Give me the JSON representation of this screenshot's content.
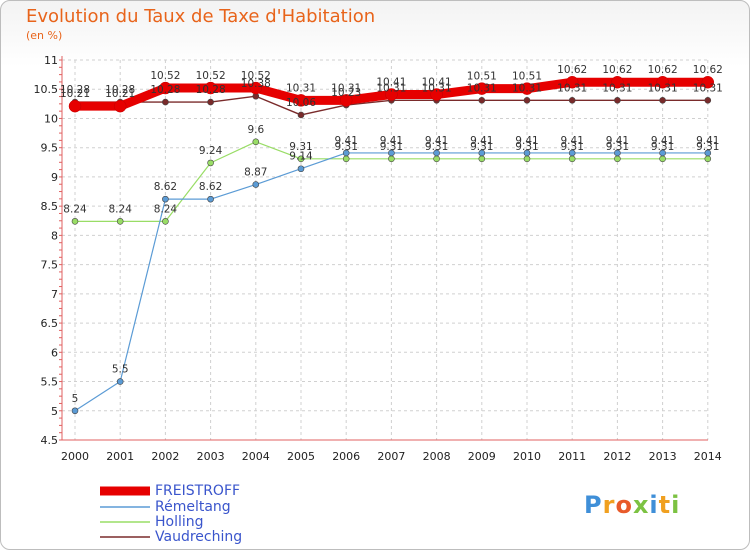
{
  "chart_data": {
    "type": "line",
    "title": "Evolution du Taux de Taxe d'Habitation",
    "subtitle": "(en %)",
    "x": [
      "2000",
      "2001",
      "2002",
      "2003",
      "2004",
      "2005",
      "2006",
      "2007",
      "2008",
      "2009",
      "2010",
      "2011",
      "2012",
      "2013",
      "2014"
    ],
    "yticks": [
      "4.5",
      "5",
      "5.5",
      "6",
      "6.5",
      "7",
      "7.5",
      "8",
      "8.5",
      "9",
      "9.5",
      "10",
      "10.5",
      "11"
    ],
    "ylim": [
      4.5,
      11
    ],
    "grid": true,
    "legend_position": "bottom-left",
    "series": [
      {
        "name": "FREISTROFF",
        "color": "#e60000",
        "values": [
          10.21,
          10.21,
          10.52,
          10.52,
          10.52,
          10.31,
          10.31,
          10.41,
          10.41,
          10.51,
          10.51,
          10.62,
          10.62,
          10.62,
          10.62
        ],
        "labels": [
          "10.21",
          "10.21",
          "10.52",
          "10.52",
          "10.52",
          "10.31",
          "10.31",
          "10.41",
          "10.41",
          "10.51",
          "10.51",
          "10.62",
          "10.62",
          "10.62",
          "10.62"
        ]
      },
      {
        "name": "Rémeltang",
        "color": "#5b9bd5",
        "values": [
          5,
          5.5,
          8.62,
          8.62,
          8.87,
          9.14,
          9.41,
          9.41,
          9.41,
          9.41,
          9.41,
          9.41,
          9.41,
          9.41,
          9.41
        ],
        "labels": [
          "5",
          "5.5",
          "8.62",
          "8.62",
          "8.87",
          "9.14",
          "9.41",
          "9.41",
          "9.41",
          "9.41",
          "9.41",
          "9.41",
          "9.41",
          "9.41",
          "9.41"
        ]
      },
      {
        "name": "Holling",
        "color": "#99dd66",
        "values": [
          8.24,
          8.24,
          8.24,
          9.24,
          9.6,
          9.31,
          9.31,
          9.31,
          9.31,
          9.31,
          9.31,
          9.31,
          9.31,
          9.31,
          9.31
        ],
        "labels": [
          "8.24",
          "8.24",
          "8.24",
          "9.24",
          "9.6",
          "9.31",
          "9.31",
          "9.31",
          "9.31",
          "9.31",
          "9.31",
          "9.31",
          "9.31",
          "9.31",
          "9.31"
        ]
      },
      {
        "name": "Vaudreching",
        "color": "#7a2b2b",
        "values": [
          10.28,
          10.28,
          10.28,
          10.28,
          10.38,
          10.06,
          10.23,
          10.31,
          10.31,
          10.31,
          10.31,
          10.31,
          10.31,
          10.31,
          10.31
        ],
        "labels": [
          "10.28",
          "10.28",
          "10.28",
          "10.28",
          "10.38",
          "10.06",
          "10.23",
          "10.31",
          "10.31",
          "10.31",
          "10.31",
          "10.31",
          "10.31",
          "10.31",
          "10.31"
        ]
      }
    ]
  },
  "logo": {
    "text": "Proxiti",
    "colors": [
      "#3f8fd8",
      "#f0a020",
      "#e85a2a",
      "#7cc242",
      "#3f8fd8",
      "#f0a020",
      "#7cc242"
    ]
  }
}
